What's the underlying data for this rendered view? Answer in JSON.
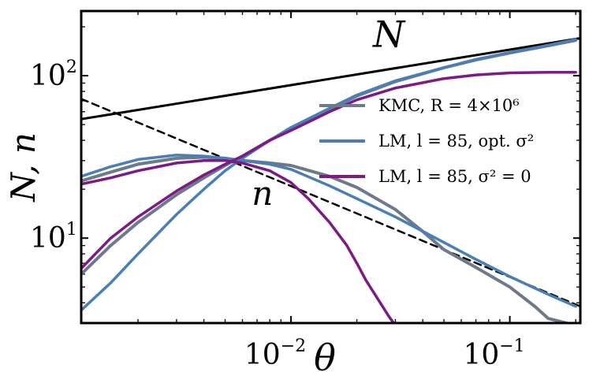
{
  "chart_data": {
    "type": "line",
    "title": "",
    "xlabel": "θ",
    "ylabel": "N, n",
    "xscale": "log",
    "yscale": "log",
    "xlim": [
      0.0011,
      0.21
    ],
    "ylim": [
      3.0,
      250
    ],
    "x_ticks": [
      {
        "value": 0.01,
        "label": "10",
        "exp": "−2"
      },
      {
        "value": 0.1,
        "label": "10",
        "exp": "−1"
      }
    ],
    "y_ticks": [
      {
        "value": 10,
        "label": "10",
        "exp": "1"
      },
      {
        "value": 100,
        "label": "10",
        "exp": "2"
      }
    ],
    "annotations": [
      {
        "text": "N",
        "x": 0.028,
        "y": 150
      },
      {
        "text": "n",
        "x": 0.0074,
        "y": 16
      }
    ],
    "legend_position": "right",
    "legend": [
      {
        "label": "KMC, R = 4×10⁶",
        "color": "#6e7a8a"
      },
      {
        "label": "LM, l = 85, opt. σ²",
        "color": "#4a7fb5"
      },
      {
        "label": "LM, l = 85, σ² = 0",
        "color": "#7d1a84"
      }
    ],
    "series": [
      {
        "name": "N theory",
        "color": "#000000",
        "dash": false,
        "width": 3,
        "x": [
          0.0011,
          0.21
        ],
        "y": [
          54,
          170
        ]
      },
      {
        "name": "n theory",
        "color": "#000000",
        "dash": true,
        "width": 2.5,
        "x": [
          0.0011,
          0.21
        ],
        "y": [
          72,
          3.8
        ]
      },
      {
        "name": "KMC N",
        "color": "#6e7a8a",
        "dash": false,
        "width": 4,
        "x": [
          0.0011,
          0.0015,
          0.002,
          0.003,
          0.004,
          0.005,
          0.006,
          0.008,
          0.01,
          0.015,
          0.02,
          0.03,
          0.05,
          0.07,
          0.1,
          0.15,
          0.2
        ],
        "y": [
          6.0,
          9.0,
          12.5,
          18.5,
          23.5,
          28.0,
          32.0,
          40.0,
          47.0,
          62.0,
          75.0,
          92.0,
          112.0,
          125.0,
          138.0,
          153.0,
          165.0
        ]
      },
      {
        "name": "KMC n",
        "color": "#6e7a8a",
        "dash": false,
        "width": 4,
        "x": [
          0.0011,
          0.0015,
          0.002,
          0.003,
          0.004,
          0.005,
          0.006,
          0.008,
          0.01,
          0.015,
          0.02,
          0.03,
          0.04,
          0.05,
          0.07,
          0.1,
          0.13,
          0.15,
          0.2
        ],
        "y": [
          22.5,
          25.5,
          28.5,
          31.0,
          31.5,
          31.0,
          30.0,
          29.0,
          28.0,
          24.0,
          20.5,
          15.0,
          11.0,
          8.5,
          6.6,
          5.0,
          3.8,
          3.2,
          2.9
        ]
      },
      {
        "name": "LM opt N",
        "color": "#4a7fb5",
        "dash": false,
        "width": 3.5,
        "x": [
          0.0011,
          0.0015,
          0.002,
          0.003,
          0.004,
          0.005,
          0.006,
          0.008,
          0.01,
          0.015,
          0.02,
          0.03,
          0.05,
          0.07,
          0.1,
          0.15,
          0.2
        ],
        "y": [
          3.6,
          5.3,
          8.0,
          14.0,
          20.0,
          26.0,
          31.0,
          40.0,
          48.0,
          63.0,
          76.0,
          93.0,
          112.0,
          126.0,
          139.0,
          154.0,
          167.0
        ]
      },
      {
        "name": "LM opt n",
        "color": "#4a7fb5",
        "dash": false,
        "width": 3.5,
        "x": [
          0.0011,
          0.0015,
          0.002,
          0.003,
          0.004,
          0.005,
          0.006,
          0.008,
          0.01,
          0.015,
          0.02,
          0.03,
          0.05,
          0.07,
          0.1,
          0.15,
          0.2
        ],
        "y": [
          24.0,
          27.5,
          30.5,
          32.5,
          32.0,
          31.0,
          30.0,
          28.5,
          26.5,
          21.0,
          17.5,
          13.5,
          9.4,
          7.4,
          5.8,
          4.5,
          3.8
        ]
      },
      {
        "name": "LM zero N",
        "color": "#7d1a84",
        "dash": false,
        "width": 3.5,
        "x": [
          0.0011,
          0.0015,
          0.002,
          0.003,
          0.004,
          0.005,
          0.006,
          0.008,
          0.01,
          0.015,
          0.02,
          0.03,
          0.05,
          0.07,
          0.1,
          0.15,
          0.2
        ],
        "y": [
          6.5,
          10.0,
          13.5,
          19.5,
          24.5,
          28.5,
          32.0,
          40.0,
          46.0,
          60.0,
          71.0,
          84.0,
          96.0,
          101.0,
          104.0,
          105.0,
          105.0
        ]
      },
      {
        "name": "LM zero n",
        "color": "#7d1a84",
        "dash": false,
        "width": 3.5,
        "x": [
          0.0011,
          0.0015,
          0.002,
          0.003,
          0.004,
          0.005,
          0.006,
          0.008,
          0.01,
          0.012,
          0.015,
          0.018,
          0.02,
          0.022,
          0.025,
          0.028,
          0.03
        ],
        "y": [
          21.5,
          23.5,
          26.0,
          29.0,
          30.0,
          30.0,
          29.0,
          26.0,
          22.0,
          17.5,
          12.5,
          9.0,
          7.0,
          5.5,
          4.2,
          3.3,
          2.9
        ]
      }
    ]
  }
}
